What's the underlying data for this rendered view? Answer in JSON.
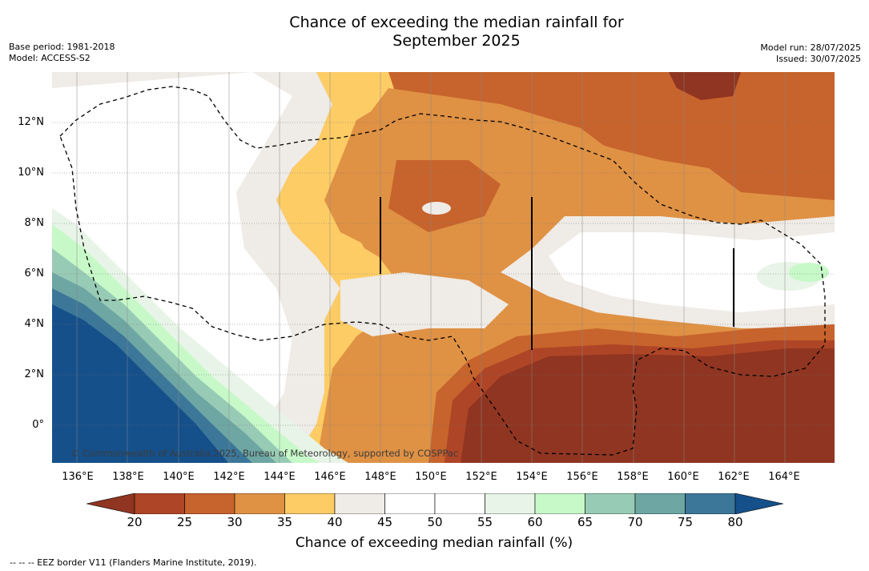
{
  "title_line1": "Chance of exceeding the median rainfall for",
  "title_line2": "September 2025",
  "base_period": "Base period: 1981-2018",
  "model": "Model: ACCESS-S2",
  "model_run": "Model run: 28/07/2025",
  "issued": "Issued: 30/07/2025",
  "lat_labels": [
    "12°N",
    "10°N",
    "8°N",
    "6°N",
    "4°N",
    "2°N",
    "0°"
  ],
  "lon_labels": [
    "136°E",
    "138°E",
    "140°E",
    "142°E",
    "144°E",
    "146°E",
    "148°E",
    "150°E",
    "152°E",
    "154°E",
    "156°E",
    "158°E",
    "160°E",
    "162°E",
    "164°E"
  ],
  "copyright": "© Commonwealth of Australia 2025, Bureau of Meteorology, supported by COSPPac",
  "colorbar": {
    "label": "Chance of exceeding median rainfall (%)",
    "ticks": [
      "20",
      "25",
      "30",
      "35",
      "40",
      "45",
      "50",
      "55",
      "60",
      "65",
      "70",
      "75",
      "80"
    ],
    "colors": [
      "#8f3521",
      "#ae4526",
      "#c7632c",
      "#df9144",
      "#fdcc65",
      "#efebe6",
      "#ffffff",
      "#ffffff",
      "#e8f4e7",
      "#c7f9c8",
      "#98cbb5",
      "#6da6a3",
      "#3c7799",
      "#15508a"
    ]
  },
  "eez_note": "--  --  -- EEZ border V11 (Flanders Marine Institute, 2019)."
}
